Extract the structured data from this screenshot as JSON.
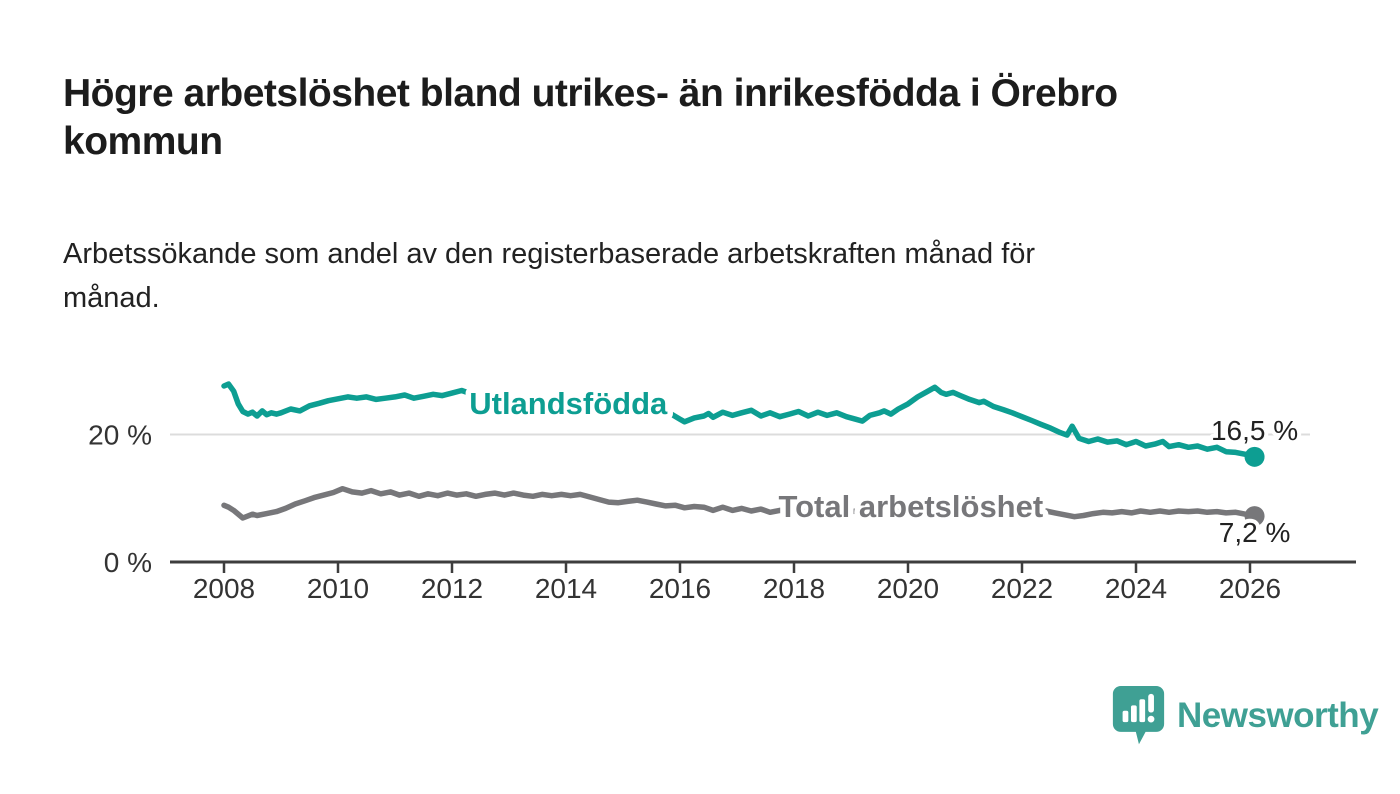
{
  "header": {
    "title": "Högre arbetslöshet bland utrikes- än inrikesfödda i Örebro kommun",
    "title_lines": [
      "Högre arbetslöshet bland utrikes- än inrikesfödda i Örebro",
      "kommun"
    ],
    "subtitle": "Arbetssökande som andel av den registerbaserade arbetskraften månad för månad.",
    "subtitle_lines": [
      "Arbetssökande som andel av den registerbaserade arbetskraften månad för",
      "månad."
    ]
  },
  "branding": {
    "logo_text": "Newsworthy",
    "logo_icon": "bar-chart-speech-bubble-icon",
    "logo_color": "#3fa094"
  },
  "chart_data": {
    "type": "line",
    "title": "",
    "xlabel": "",
    "ylabel": "",
    "grid": "single horizontal gridline at 20 %",
    "legend_position": "inline labels on lines",
    "x_axis": {
      "range_years": [
        2007.1,
        2027.3
      ],
      "ticks": [
        {
          "value": 2008,
          "label": "2008"
        },
        {
          "value": 2010,
          "label": "2010"
        },
        {
          "value": 2012,
          "label": "2012"
        },
        {
          "value": 2014,
          "label": "2014"
        },
        {
          "value": 2016,
          "label": "2016"
        },
        {
          "value": 2018,
          "label": "2018"
        },
        {
          "value": 2020,
          "label": "2020"
        },
        {
          "value": 2022,
          "label": "2022"
        },
        {
          "value": 2024,
          "label": "2024"
        },
        {
          "value": 2026,
          "label": "2026"
        }
      ]
    },
    "y_axis": {
      "unit": "%",
      "range": [
        0,
        31
      ],
      "ticks": [
        {
          "value": 20,
          "label": "20 %",
          "grid": true
        },
        {
          "value": 0,
          "label": "0 %",
          "grid": false
        }
      ]
    },
    "style": {
      "grid_color": "#dcdcdc",
      "axis_color": "#3d3d3d",
      "tick_text_color": "#333333",
      "value_label_color": "#222222",
      "halo_color": "#ffffff"
    },
    "series_labels": [
      {
        "id": "utlandsfodda",
        "text": "Utlandsfödda",
        "x": 2014.04,
        "y": 24.94,
        "color": "#0d9e92"
      },
      {
        "id": "total",
        "text": "Total arbetslöshet",
        "x": 2020.05,
        "y": 8.78,
        "color": "#77777a"
      }
    ],
    "series": [
      {
        "id": "utlandsfodda",
        "name": "Utlandsfödda",
        "color": "#0d9e92",
        "end_label": {
          "text": "16,5 %",
          "dx": 0,
          "dy": -17
        },
        "end_value": 16.5,
        "points": [
          [
            2008.0,
            27.6
          ],
          [
            2008.08,
            27.9
          ],
          [
            2008.17,
            26.8
          ],
          [
            2008.25,
            24.8
          ],
          [
            2008.33,
            23.6
          ],
          [
            2008.42,
            23.2
          ],
          [
            2008.5,
            23.5
          ],
          [
            2008.58,
            22.9
          ],
          [
            2008.67,
            23.7
          ],
          [
            2008.75,
            23.1
          ],
          [
            2008.83,
            23.4
          ],
          [
            2008.92,
            23.2
          ],
          [
            2009.0,
            23.4
          ],
          [
            2009.17,
            24.0
          ],
          [
            2009.33,
            23.7
          ],
          [
            2009.5,
            24.5
          ],
          [
            2009.67,
            24.9
          ],
          [
            2009.83,
            25.3
          ],
          [
            2010.0,
            25.6
          ],
          [
            2010.17,
            25.9
          ],
          [
            2010.33,
            25.7
          ],
          [
            2010.5,
            25.9
          ],
          [
            2010.67,
            25.5
          ],
          [
            2010.83,
            25.7
          ],
          [
            2011.0,
            25.9
          ],
          [
            2011.17,
            26.2
          ],
          [
            2011.33,
            25.7
          ],
          [
            2011.5,
            26.0
          ],
          [
            2011.67,
            26.3
          ],
          [
            2011.83,
            26.1
          ],
          [
            2012.0,
            26.5
          ],
          [
            2012.17,
            26.9
          ],
          [
            2012.33,
            26.4
          ],
          [
            2012.5,
            26.2
          ],
          [
            2012.67,
            26.0
          ],
          [
            2012.83,
            25.8
          ],
          [
            2013.0,
            25.6
          ],
          [
            2013.17,
            25.4
          ],
          [
            2013.33,
            25.3
          ],
          [
            2013.5,
            25.0
          ],
          [
            2013.67,
            24.8
          ],
          [
            2013.83,
            24.6
          ],
          [
            2014.0,
            24.4
          ],
          [
            2014.17,
            24.2
          ],
          [
            2014.33,
            24.0
          ],
          [
            2014.5,
            23.8
          ],
          [
            2014.67,
            23.6
          ],
          [
            2014.83,
            23.5
          ],
          [
            2015.0,
            23.3
          ],
          [
            2015.17,
            23.2
          ],
          [
            2015.33,
            23.1
          ],
          [
            2015.5,
            23.0
          ],
          [
            2015.67,
            23.2
          ],
          [
            2015.83,
            23.3
          ],
          [
            2016.0,
            22.4
          ],
          [
            2016.08,
            22.0
          ],
          [
            2016.25,
            22.6
          ],
          [
            2016.42,
            22.9
          ],
          [
            2016.5,
            23.3
          ],
          [
            2016.58,
            22.7
          ],
          [
            2016.75,
            23.5
          ],
          [
            2016.92,
            23.0
          ],
          [
            2017.08,
            23.4
          ],
          [
            2017.25,
            23.8
          ],
          [
            2017.42,
            22.9
          ],
          [
            2017.58,
            23.4
          ],
          [
            2017.75,
            22.8
          ],
          [
            2017.92,
            23.2
          ],
          [
            2018.08,
            23.6
          ],
          [
            2018.25,
            22.9
          ],
          [
            2018.42,
            23.5
          ],
          [
            2018.58,
            23.0
          ],
          [
            2018.75,
            23.4
          ],
          [
            2018.92,
            22.8
          ],
          [
            2019.08,
            22.4
          ],
          [
            2019.2,
            22.1
          ],
          [
            2019.33,
            23.0
          ],
          [
            2019.5,
            23.4
          ],
          [
            2019.58,
            23.7
          ],
          [
            2019.7,
            23.2
          ],
          [
            2019.83,
            24.0
          ],
          [
            2020.0,
            24.8
          ],
          [
            2020.17,
            25.9
          ],
          [
            2020.33,
            26.7
          ],
          [
            2020.47,
            27.4
          ],
          [
            2020.58,
            26.6
          ],
          [
            2020.67,
            26.3
          ],
          [
            2020.79,
            26.6
          ],
          [
            2020.92,
            26.1
          ],
          [
            2021.08,
            25.5
          ],
          [
            2021.25,
            25.0
          ],
          [
            2021.33,
            25.2
          ],
          [
            2021.5,
            24.4
          ],
          [
            2021.67,
            23.9
          ],
          [
            2021.83,
            23.4
          ],
          [
            2022.0,
            22.8
          ],
          [
            2022.17,
            22.2
          ],
          [
            2022.33,
            21.6
          ],
          [
            2022.5,
            21.0
          ],
          [
            2022.67,
            20.3
          ],
          [
            2022.79,
            19.9
          ],
          [
            2022.88,
            21.3
          ],
          [
            2023.0,
            19.4
          ],
          [
            2023.17,
            18.9
          ],
          [
            2023.33,
            19.3
          ],
          [
            2023.5,
            18.8
          ],
          [
            2023.67,
            19.0
          ],
          [
            2023.83,
            18.4
          ],
          [
            2024.0,
            18.9
          ],
          [
            2024.17,
            18.2
          ],
          [
            2024.33,
            18.5
          ],
          [
            2024.47,
            18.9
          ],
          [
            2024.58,
            18.1
          ],
          [
            2024.75,
            18.4
          ],
          [
            2024.92,
            18.0
          ],
          [
            2025.08,
            18.2
          ],
          [
            2025.25,
            17.7
          ],
          [
            2025.42,
            18.0
          ],
          [
            2025.58,
            17.3
          ],
          [
            2025.75,
            17.2
          ],
          [
            2025.92,
            16.9
          ],
          [
            2026.08,
            16.5
          ]
        ]
      },
      {
        "id": "total",
        "name": "Total arbetslöshet",
        "color": "#77777a",
        "end_label": {
          "text": "7,2 %",
          "dx": 0,
          "dy": 26
        },
        "end_value": 7.2,
        "points": [
          [
            2008.0,
            8.9
          ],
          [
            2008.08,
            8.6
          ],
          [
            2008.17,
            8.1
          ],
          [
            2008.33,
            6.9
          ],
          [
            2008.5,
            7.5
          ],
          [
            2008.58,
            7.3
          ],
          [
            2008.75,
            7.6
          ],
          [
            2008.92,
            7.9
          ],
          [
            2009.08,
            8.4
          ],
          [
            2009.25,
            9.1
          ],
          [
            2009.42,
            9.6
          ],
          [
            2009.58,
            10.1
          ],
          [
            2009.75,
            10.5
          ],
          [
            2009.92,
            10.9
          ],
          [
            2010.08,
            11.5
          ],
          [
            2010.25,
            11.0
          ],
          [
            2010.42,
            10.8
          ],
          [
            2010.58,
            11.2
          ],
          [
            2010.75,
            10.7
          ],
          [
            2010.92,
            11.0
          ],
          [
            2011.08,
            10.5
          ],
          [
            2011.25,
            10.8
          ],
          [
            2011.42,
            10.3
          ],
          [
            2011.58,
            10.7
          ],
          [
            2011.75,
            10.4
          ],
          [
            2011.92,
            10.8
          ],
          [
            2012.08,
            10.5
          ],
          [
            2012.25,
            10.7
          ],
          [
            2012.42,
            10.3
          ],
          [
            2012.58,
            10.6
          ],
          [
            2012.75,
            10.8
          ],
          [
            2012.92,
            10.5
          ],
          [
            2013.08,
            10.8
          ],
          [
            2013.25,
            10.5
          ],
          [
            2013.42,
            10.3
          ],
          [
            2013.58,
            10.6
          ],
          [
            2013.75,
            10.4
          ],
          [
            2013.92,
            10.6
          ],
          [
            2014.08,
            10.4
          ],
          [
            2014.25,
            10.6
          ],
          [
            2014.42,
            10.2
          ],
          [
            2014.58,
            9.8
          ],
          [
            2014.75,
            9.4
          ],
          [
            2014.92,
            9.3
          ],
          [
            2015.08,
            9.5
          ],
          [
            2015.25,
            9.7
          ],
          [
            2015.42,
            9.4
          ],
          [
            2015.58,
            9.1
          ],
          [
            2015.75,
            8.8
          ],
          [
            2015.92,
            8.9
          ],
          [
            2016.08,
            8.5
          ],
          [
            2016.25,
            8.7
          ],
          [
            2016.42,
            8.6
          ],
          [
            2016.58,
            8.1
          ],
          [
            2016.75,
            8.6
          ],
          [
            2016.92,
            8.1
          ],
          [
            2017.08,
            8.4
          ],
          [
            2017.25,
            8.0
          ],
          [
            2017.42,
            8.3
          ],
          [
            2017.58,
            7.8
          ],
          [
            2017.75,
            8.1
          ],
          [
            2017.92,
            7.9
          ],
          [
            2018.17,
            8.0
          ],
          [
            2018.42,
            7.9
          ],
          [
            2018.67,
            8.0
          ],
          [
            2018.92,
            7.9
          ],
          [
            2019.17,
            8.0
          ],
          [
            2019.42,
            7.9
          ],
          [
            2019.67,
            8.0
          ],
          [
            2019.92,
            8.1
          ],
          [
            2020.17,
            8.2
          ],
          [
            2020.42,
            8.3
          ],
          [
            2020.67,
            8.3
          ],
          [
            2020.92,
            8.2
          ],
          [
            2021.17,
            8.1
          ],
          [
            2021.42,
            8.1
          ],
          [
            2021.67,
            8.0
          ],
          [
            2021.92,
            8.0
          ],
          [
            2022.17,
            8.0
          ],
          [
            2022.42,
            8.0
          ],
          [
            2022.58,
            7.7
          ],
          [
            2022.75,
            7.4
          ],
          [
            2022.92,
            7.1
          ],
          [
            2023.08,
            7.3
          ],
          [
            2023.25,
            7.6
          ],
          [
            2023.42,
            7.8
          ],
          [
            2023.58,
            7.7
          ],
          [
            2023.75,
            7.9
          ],
          [
            2023.92,
            7.7
          ],
          [
            2024.08,
            8.0
          ],
          [
            2024.25,
            7.8
          ],
          [
            2024.42,
            8.0
          ],
          [
            2024.58,
            7.8
          ],
          [
            2024.75,
            8.0
          ],
          [
            2024.92,
            7.9
          ],
          [
            2025.08,
            8.0
          ],
          [
            2025.25,
            7.8
          ],
          [
            2025.42,
            7.9
          ],
          [
            2025.58,
            7.7
          ],
          [
            2025.75,
            7.8
          ],
          [
            2025.92,
            7.5
          ],
          [
            2026.08,
            7.2
          ]
        ]
      }
    ]
  }
}
